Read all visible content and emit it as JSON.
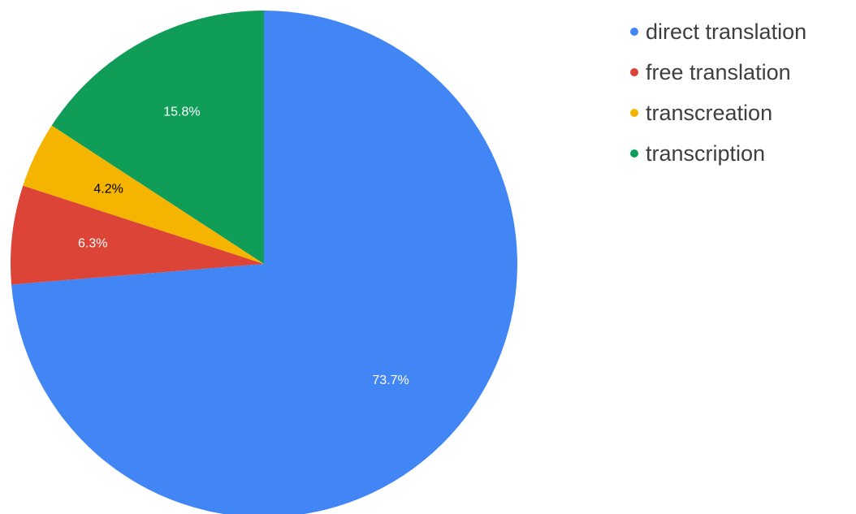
{
  "chart_data": {
    "type": "pie",
    "title": "",
    "start_angle_deg": 0,
    "direction": "clockwise",
    "categories": [
      "direct translation",
      "free translation",
      "transcreation",
      "transcription"
    ],
    "values": [
      73.7,
      6.3,
      4.2,
      15.8
    ],
    "value_labels": [
      "73.7%",
      "6.3%",
      "4.2%",
      "15.8%"
    ],
    "colors": [
      "#4285f4",
      "#db4437",
      "#f4b400",
      "#0f9d58"
    ],
    "label_colors": [
      "#ffffff",
      "#ffffff",
      "#000000",
      "#ffffff"
    ],
    "legend_position": "right"
  }
}
